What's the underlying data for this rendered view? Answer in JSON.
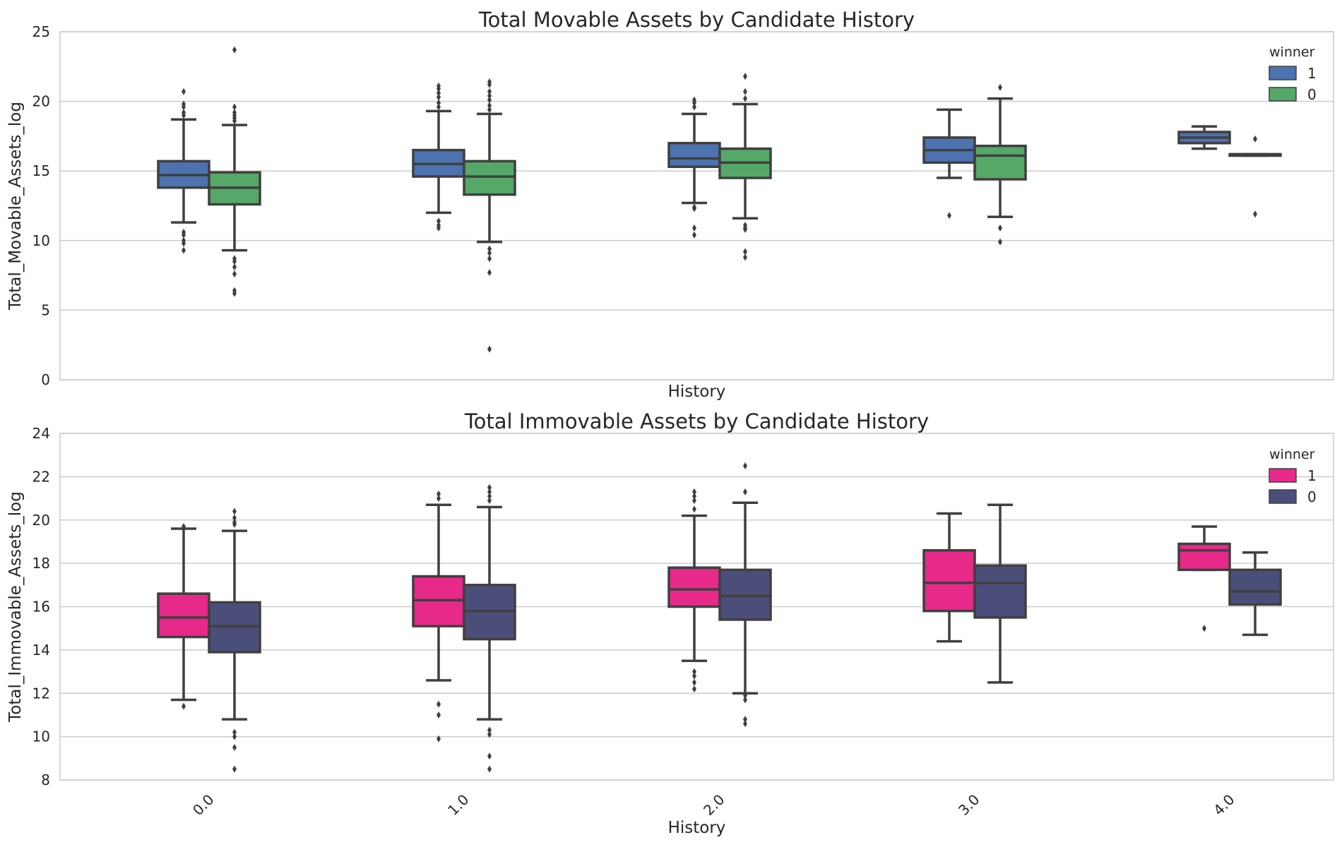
{
  "chart_data": [
    {
      "type": "box",
      "title": "Total Movable Assets by Candidate History",
      "xlabel": "History",
      "ylabel": "Total_Movable_Assets_log",
      "ylim": [
        0,
        25
      ],
      "yticks": [
        0,
        5,
        10,
        15,
        20,
        25
      ],
      "categories": [
        "0.0",
        "1.0",
        "2.0",
        "3.0",
        "4.0"
      ],
      "show_xtick_labels": false,
      "grid": true,
      "legend": {
        "title": "winner",
        "placement": "top-right"
      },
      "series": [
        {
          "name": "1",
          "color": "#4c72b0",
          "boxes": [
            {
              "whislo": 11.3,
              "q1": 13.8,
              "med": 14.7,
              "q3": 15.7,
              "whishi": 18.7,
              "fliers": [
                10.6,
                10.4,
                10.0,
                9.8,
                9.3,
                19.0,
                19.2,
                19.6,
                19.8,
                20.7
              ]
            },
            {
              "whislo": 12.0,
              "q1": 14.6,
              "med": 15.5,
              "q3": 16.5,
              "whishi": 19.3,
              "fliers": [
                11.4,
                11.1,
                10.9,
                19.6,
                19.9,
                20.3,
                20.6,
                20.9,
                21.1
              ]
            },
            {
              "whislo": 12.7,
              "q1": 15.3,
              "med": 15.9,
              "q3": 17.0,
              "whishi": 19.1,
              "fliers": [
                12.4,
                12.3,
                10.9,
                10.4,
                19.6,
                19.9,
                20.1
              ]
            },
            {
              "whislo": 14.5,
              "q1": 15.6,
              "med": 16.5,
              "q3": 17.4,
              "whishi": 19.4,
              "fliers": [
                11.8
              ]
            },
            {
              "whislo": 16.6,
              "q1": 17.0,
              "med": 17.4,
              "q3": 17.8,
              "whishi": 18.2,
              "fliers": []
            }
          ]
        },
        {
          "name": "0",
          "color": "#55a868",
          "boxes": [
            {
              "whislo": 9.3,
              "q1": 12.6,
              "med": 13.8,
              "q3": 14.9,
              "whishi": 18.3,
              "fliers": [
                8.7,
                8.5,
                8.1,
                7.6,
                6.4,
                6.2,
                18.6,
                18.8,
                19.0,
                19.2,
                19.6,
                23.7
              ]
            },
            {
              "whislo": 9.9,
              "q1": 13.3,
              "med": 14.6,
              "q3": 15.7,
              "whishi": 19.1,
              "fliers": [
                9.4,
                9.1,
                8.7,
                7.7,
                2.2,
                19.4,
                19.7,
                20.1,
                20.4,
                20.7,
                21.2,
                21.4
              ]
            },
            {
              "whislo": 11.6,
              "q1": 14.5,
              "med": 15.6,
              "q3": 16.6,
              "whishi": 19.8,
              "fliers": [
                11.1,
                10.9,
                10.8,
                9.2,
                8.8,
                20.2,
                20.7,
                21.8
              ]
            },
            {
              "whislo": 11.7,
              "q1": 14.4,
              "med": 16.1,
              "q3": 16.8,
              "whishi": 20.2,
              "fliers": [
                10.9,
                9.9,
                21.0
              ]
            },
            {
              "whislo": 16.1,
              "q1": 16.1,
              "med": 16.2,
              "q3": 16.2,
              "whishi": 16.2,
              "fliers": [
                17.3,
                11.9
              ]
            }
          ]
        }
      ]
    },
    {
      "type": "box",
      "title": "Total Immovable Assets by Candidate History",
      "xlabel": "History",
      "ylabel": "Total_Immovable_Assets_log",
      "ylim": [
        8,
        24
      ],
      "yticks": [
        8,
        10,
        12,
        14,
        16,
        18,
        20,
        22,
        24
      ],
      "categories": [
        "0.0",
        "1.0",
        "2.0",
        "3.0",
        "4.0"
      ],
      "show_xtick_labels": true,
      "grid": true,
      "legend": {
        "title": "winner",
        "placement": "top-right"
      },
      "series": [
        {
          "name": "1",
          "color": "#e7298a",
          "boxes": [
            {
              "whislo": 11.7,
              "q1": 14.6,
              "med": 15.5,
              "q3": 16.6,
              "whishi": 19.6,
              "fliers": [
                11.4,
                19.7
              ]
            },
            {
              "whislo": 12.6,
              "q1": 15.1,
              "med": 16.3,
              "q3": 17.4,
              "whishi": 20.7,
              "fliers": [
                11.5,
                11.0,
                9.9,
                21.0,
                21.2
              ]
            },
            {
              "whislo": 13.5,
              "q1": 16.0,
              "med": 16.8,
              "q3": 17.8,
              "whishi": 20.2,
              "fliers": [
                13.0,
                12.8,
                12.5,
                12.2,
                20.5,
                20.9,
                21.1,
                21.3
              ]
            },
            {
              "whislo": 14.4,
              "q1": 15.8,
              "med": 17.1,
              "q3": 18.6,
              "whishi": 20.3,
              "fliers": []
            },
            {
              "whislo": 17.7,
              "q1": 17.7,
              "med": 18.6,
              "q3": 18.9,
              "whishi": 19.7,
              "fliers": [
                15.0
              ]
            }
          ]
        },
        {
          "name": "0",
          "color": "#4c4e7a",
          "boxes": [
            {
              "whislo": 10.8,
              "q1": 13.9,
              "med": 15.1,
              "q3": 16.2,
              "whishi": 19.5,
              "fliers": [
                10.2,
                10.0,
                9.5,
                8.5,
                19.8,
                19.9,
                20.1,
                20.4
              ]
            },
            {
              "whislo": 10.8,
              "q1": 14.5,
              "med": 15.8,
              "q3": 17.0,
              "whishi": 20.6,
              "fliers": [
                10.3,
                10.1,
                9.1,
                8.5,
                20.9,
                21.1,
                21.3,
                21.5
              ]
            },
            {
              "whislo": 12.0,
              "q1": 15.4,
              "med": 16.5,
              "q3": 17.7,
              "whishi": 20.8,
              "fliers": [
                11.9,
                11.7,
                10.8,
                10.6,
                21.3,
                22.5
              ]
            },
            {
              "whislo": 12.5,
              "q1": 15.5,
              "med": 17.1,
              "q3": 17.9,
              "whishi": 20.7,
              "fliers": []
            },
            {
              "whislo": 14.7,
              "q1": 16.1,
              "med": 16.7,
              "q3": 17.7,
              "whishi": 18.5,
              "fliers": []
            }
          ]
        }
      ]
    }
  ]
}
